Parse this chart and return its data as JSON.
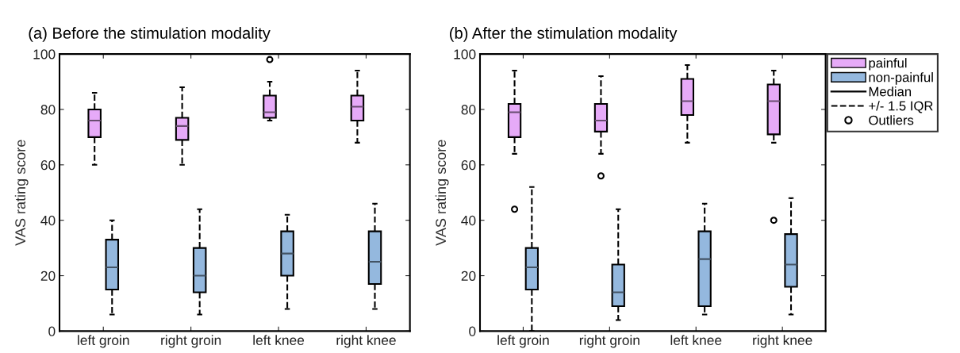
{
  "chart_data": [
    {
      "type": "box",
      "title": "(a) Before the stimulation modality",
      "ylabel": "VAS rating score",
      "categories": [
        "left groin",
        "right groin",
        "left knee",
        "right knee"
      ],
      "ylim": [
        0,
        100
      ],
      "yticks": [
        0,
        20,
        40,
        60,
        80,
        100
      ],
      "grid": false,
      "line_style": "dashed",
      "marker": "circle",
      "series": [
        {
          "color": "#e6aaf8",
          "boxes": [
            {
              "low": 60,
              "q1": 70,
              "median": 76,
              "q3": 80,
              "high": 86
            },
            {
              "low": 60,
              "q1": 69,
              "median": 74,
              "q3": 77,
              "high": 88
            },
            {
              "low": 76,
              "q1": 77,
              "median": 79,
              "q3": 85,
              "high": 90,
              "outliers": [
                98
              ]
            },
            {
              "low": 68,
              "q1": 76,
              "median": 81,
              "q3": 85,
              "high": 94
            }
          ]
        },
        {
          "color": "#94b8de",
          "boxes": [
            {
              "low": 6,
              "q1": 15,
              "median": 23,
              "q3": 33,
              "high": 40
            },
            {
              "low": 6,
              "q1": 14,
              "median": 20,
              "q3": 30,
              "high": 44
            },
            {
              "low": 8,
              "q1": 20,
              "median": 28,
              "q3": 36,
              "high": 42
            },
            {
              "low": 8,
              "q1": 17,
              "median": 25,
              "q3": 36,
              "high": 46
            }
          ]
        }
      ]
    },
    {
      "type": "box",
      "title": "(b) After the stimulation modality",
      "ylabel": "VAS rating score",
      "categories": [
        "left groin",
        "right groin",
        "left knee",
        "right knee"
      ],
      "ylim": [
        0,
        100
      ],
      "yticks": [
        0,
        20,
        40,
        60,
        80,
        100
      ],
      "grid": false,
      "legend": "right",
      "line_style": "dashed",
      "marker": "circle",
      "annotations": [
        "Median",
        "+/- 1.5 IQR",
        "Outliers"
      ],
      "series": [
        {
          "name": "painful",
          "color": "#e6aaf8",
          "boxes": [
            {
              "low": 64,
              "q1": 70,
              "median": 79,
              "q3": 82,
              "high": 94,
              "outliers": [
                44
              ]
            },
            {
              "low": 64,
              "q1": 72,
              "median": 76,
              "q3": 82,
              "high": 92,
              "outliers": [
                56
              ]
            },
            {
              "low": 68,
              "q1": 78,
              "median": 83,
              "q3": 91,
              "high": 96
            },
            {
              "low": 68,
              "q1": 71,
              "median": 83,
              "q3": 89,
              "high": 94,
              "outliers": [
                40
              ]
            }
          ]
        },
        {
          "name": "non-painful",
          "color": "#94b8de",
          "boxes": [
            {
              "low": 0,
              "q1": 15,
              "median": 23,
              "q3": 30,
              "high": 52
            },
            {
              "low": 4,
              "q1": 9,
              "median": 14,
              "q3": 24,
              "high": 44
            },
            {
              "low": 6,
              "q1": 9,
              "median": 26,
              "q3": 36,
              "high": 46
            },
            {
              "low": 6,
              "q1": 16,
              "median": 24,
              "q3": 35,
              "high": 48
            }
          ]
        }
      ]
    }
  ]
}
